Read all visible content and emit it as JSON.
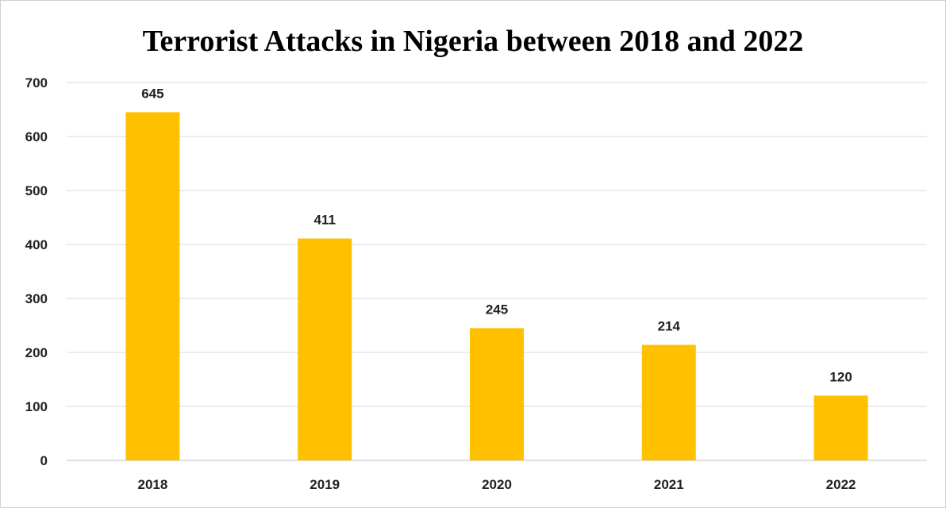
{
  "chart_data": {
    "type": "bar",
    "title": "Terrorist Attacks in Nigeria between 2018 and 2022",
    "xlabel": "",
    "ylabel": "",
    "categories": [
      "2018",
      "2019",
      "2020",
      "2021",
      "2022"
    ],
    "series": [
      {
        "values": [
          645,
          411,
          245,
          214,
          120
        ],
        "color": "#FFC000"
      }
    ],
    "data_labels": [
      "645",
      "411",
      "245",
      "214",
      "120"
    ],
    "y_ticks": [
      "0",
      "100",
      "200",
      "300",
      "400",
      "500",
      "600",
      "700"
    ],
    "ylim": [
      0,
      700
    ],
    "grid": true,
    "legend": false
  },
  "colors": {
    "bar": "#FFC000",
    "gridline": "#D9D9D9",
    "axis": "#BFBFBF",
    "text": "#222222"
  }
}
